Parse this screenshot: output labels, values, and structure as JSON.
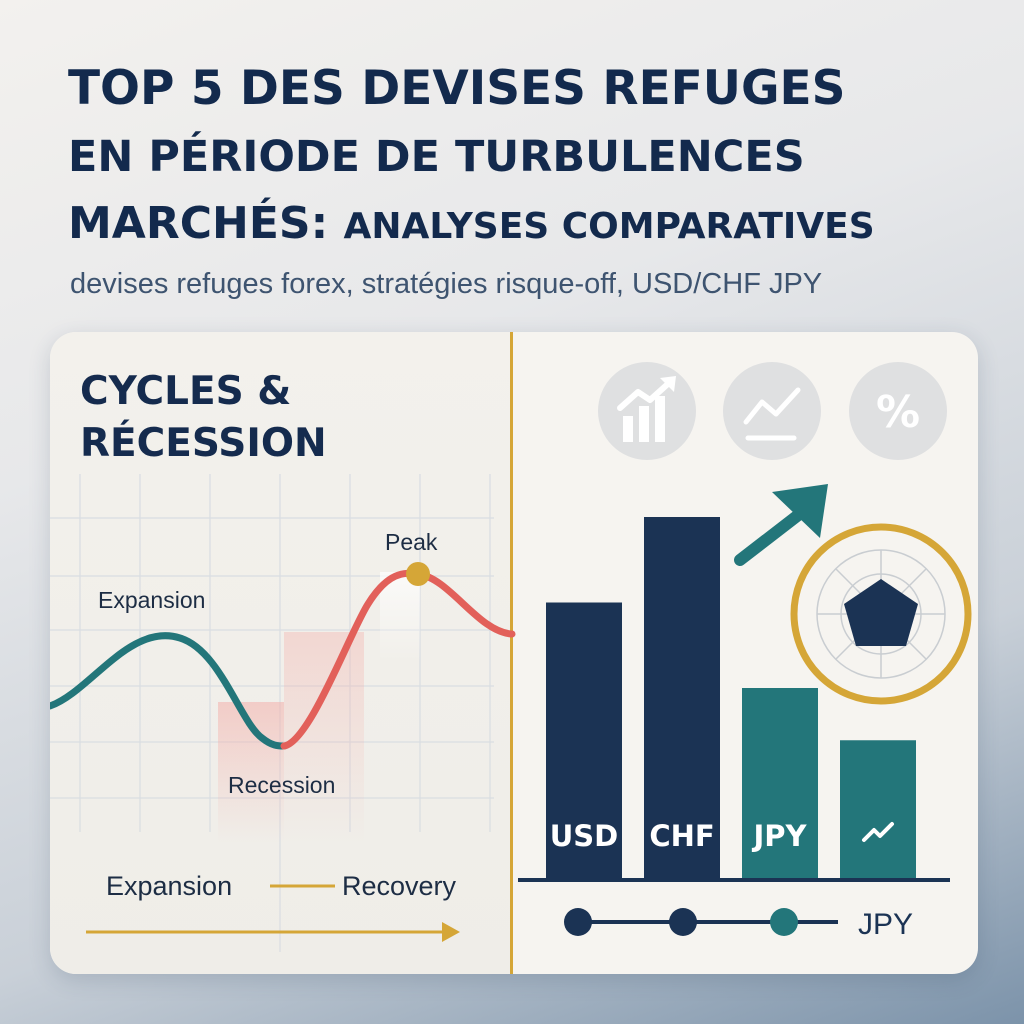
{
  "header": {
    "title_line1": "TOP 5 DES DEVISES REFUGES",
    "title_line2": "EN PÉRIODE DE TURBULENCES",
    "title_line3_lead": "MARCHÉS:",
    "title_line3_rest": "ANALYSES COMPARATIVES",
    "subtitle": "devises refuges forex, stratégies risque-off, USD/CHF JPY"
  },
  "cycle_panel": {
    "heading_line1": "CYCLES &",
    "heading_line2": "RÉCESSION",
    "label_expansion": "Expansion",
    "label_peak": "Peak",
    "label_recession": "Recession",
    "legend_expansion": "Expansion",
    "legend_recovery": "Recovery"
  },
  "icons": [
    "bar-chart-up-icon",
    "line-chart-icon",
    "percent-icon"
  ],
  "icon_texts": {
    "percent": "%"
  },
  "timeline": {
    "label": "JPY"
  },
  "colors": {
    "navy": "#1b3354",
    "teal": "#23767a",
    "coral": "#e2605a",
    "gold": "#d5a637"
  },
  "chart_data": {
    "type": "bar",
    "categories": [
      "USD",
      "CHF",
      "JPY",
      ""
    ],
    "values": [
      58,
      76,
      40,
      29
    ],
    "bar_colors": [
      "#1b3354",
      "#1b3354",
      "#23767a",
      "#23767a"
    ],
    "last_category_icon": "trend-zigzag-icon",
    "title": "",
    "xlabel": "",
    "ylabel": "",
    "ylim": [
      0,
      80
    ],
    "grid": false
  }
}
